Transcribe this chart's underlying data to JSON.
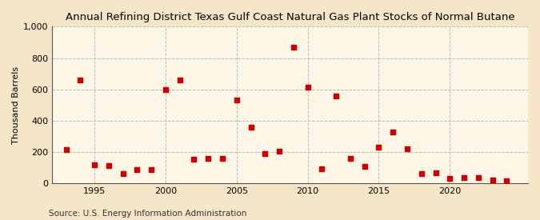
{
  "title": "Annual Refining District Texas Gulf Coast Natural Gas Plant Stocks of Normal Butane",
  "ylabel": "Thousand Barrels",
  "source": "Source: U.S. Energy Information Administration",
  "fig_background_color": "#f5e6c8",
  "plot_background_color": "#fdf5e6",
  "marker_color": "#cc0000",
  "marker_size": 22,
  "xlim": [
    1992.0,
    2025.5
  ],
  "ylim": [
    0,
    1000
  ],
  "yticks": [
    0,
    200,
    400,
    600,
    800,
    1000
  ],
  "ytick_labels": [
    "0",
    "200",
    "400",
    "600",
    "800",
    "1,000"
  ],
  "xticks": [
    1995,
    2000,
    2005,
    2010,
    2015,
    2020
  ],
  "years": [
    1993,
    1994,
    1995,
    1996,
    1997,
    1998,
    1999,
    2000,
    2001,
    2002,
    2003,
    2004,
    2005,
    2006,
    2007,
    2008,
    2009,
    2010,
    2011,
    2012,
    2013,
    2014,
    2015,
    2016,
    2017,
    2018,
    2019,
    2020,
    2021,
    2022,
    2023,
    2024
  ],
  "values": [
    215,
    660,
    120,
    115,
    65,
    90,
    90,
    600,
    660,
    155,
    160,
    160,
    530,
    360,
    190,
    205,
    870,
    615,
    95,
    560,
    160,
    110,
    230,
    330,
    220,
    65,
    70,
    30,
    35,
    35,
    20,
    15
  ],
  "title_fontsize": 9.5,
  "axis_fontsize": 8,
  "source_fontsize": 7.5,
  "grid_color": "#b0b0b0",
  "spine_color": "#555555"
}
